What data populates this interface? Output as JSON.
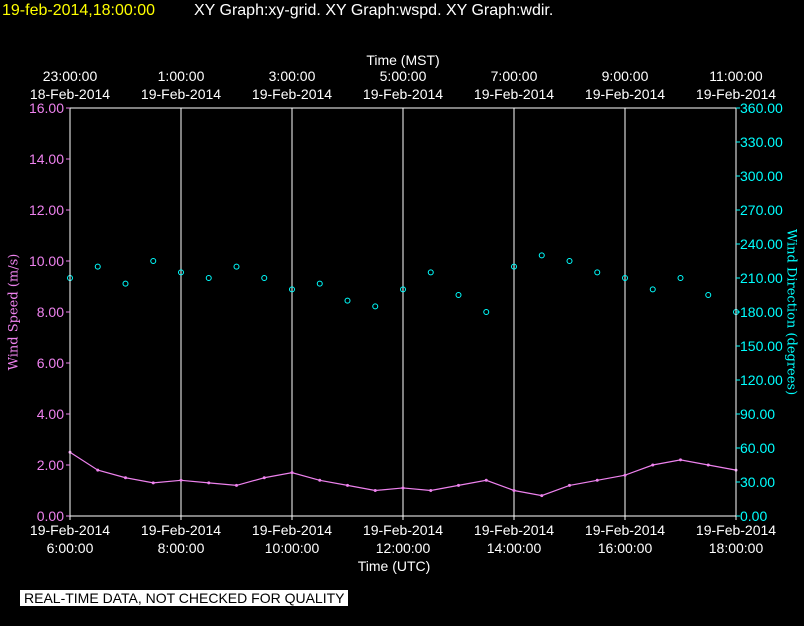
{
  "header": {
    "date": "19-feb-2014,18:00:00",
    "titles": "XY Graph:xy-grid.  XY Graph:wspd.  XY Graph:wdir."
  },
  "banner": "REAL-TIME DATA, NOT CHECKED FOR QUALITY",
  "colors": {
    "speed": "#ee82ee",
    "direction": "#00ffff",
    "grid": "#ffffff",
    "date": "#ffff00"
  },
  "chart_data": {
    "type": "scatter",
    "top_axis": {
      "label": "Time (MST)",
      "ticks": [
        {
          "time": "23:00:00",
          "date": "18-Feb-2014",
          "hour": 0
        },
        {
          "time": "1:00:00",
          "date": "19-Feb-2014",
          "hour": 2
        },
        {
          "time": "3:00:00",
          "date": "19-Feb-2014",
          "hour": 4
        },
        {
          "time": "5:00:00",
          "date": "19-Feb-2014",
          "hour": 6
        },
        {
          "time": "7:00:00",
          "date": "19-Feb-2014",
          "hour": 8
        },
        {
          "time": "9:00:00",
          "date": "19-Feb-2014",
          "hour": 10
        },
        {
          "time": "11:00:00",
          "date": "19-Feb-2014",
          "hour": 12
        }
      ]
    },
    "bottom_axis": {
      "label": "Time (UTC)",
      "range": [
        "19-Feb-2014 6:00:00",
        "19-Feb-2014 18:00:00"
      ],
      "ticks": [
        {
          "date": "19-Feb-2014",
          "time": "6:00:00",
          "hour": 0
        },
        {
          "date": "19-Feb-2014",
          "time": "8:00:00",
          "hour": 2
        },
        {
          "date": "19-Feb-2014",
          "time": "10:00:00",
          "hour": 4
        },
        {
          "date": "19-Feb-2014",
          "time": "12:00:00",
          "hour": 6
        },
        {
          "date": "19-Feb-2014",
          "time": "14:00:00",
          "hour": 8
        },
        {
          "date": "19-Feb-2014",
          "time": "16:00:00",
          "hour": 10
        },
        {
          "date": "19-Feb-2014",
          "time": "18:00:00",
          "hour": 12
        }
      ]
    },
    "left_axis": {
      "label": "Wind Speed (m/s)",
      "range": [
        0,
        16
      ],
      "ticks": [
        "0.00",
        "2.00",
        "4.00",
        "6.00",
        "8.00",
        "10.00",
        "12.00",
        "14.00",
        "16.00"
      ]
    },
    "right_axis": {
      "label": "Wind Direction (degrees)",
      "range": [
        0,
        360
      ],
      "ticks": [
        "0.00",
        "30.00",
        "60.00",
        "90.00",
        "120.00",
        "150.00",
        "180.00",
        "210.00",
        "240.00",
        "270.00",
        "300.00",
        "330.00",
        "360.00"
      ]
    },
    "grid": true,
    "series": [
      {
        "label": "wspd",
        "style": "line",
        "axis": "left",
        "points": [
          [
            0,
            2.5
          ],
          [
            0.5,
            1.8
          ],
          [
            1,
            1.5
          ],
          [
            1.5,
            1.3
          ],
          [
            2,
            1.4
          ],
          [
            2.5,
            1.3
          ],
          [
            3,
            1.2
          ],
          [
            3.5,
            1.5
          ],
          [
            4,
            1.7
          ],
          [
            4.5,
            1.4
          ],
          [
            5,
            1.2
          ],
          [
            5.5,
            1.0
          ],
          [
            6,
            1.1
          ],
          [
            6.5,
            1.0
          ],
          [
            7,
            1.2
          ],
          [
            7.5,
            1.4
          ],
          [
            8,
            1.0
          ],
          [
            8.5,
            0.8
          ],
          [
            9,
            1.2
          ],
          [
            9.5,
            1.4
          ],
          [
            10,
            1.6
          ],
          [
            10.5,
            2.0
          ],
          [
            11,
            2.2
          ],
          [
            11.5,
            2.0
          ],
          [
            12,
            1.8
          ]
        ]
      },
      {
        "label": "wdir",
        "style": "circles",
        "axis": "right",
        "points": [
          [
            0,
            210
          ],
          [
            0.5,
            220
          ],
          [
            1,
            205
          ],
          [
            1.5,
            225
          ],
          [
            2,
            215
          ],
          [
            2.5,
            210
          ],
          [
            3,
            220
          ],
          [
            3.5,
            210
          ],
          [
            4,
            200
          ],
          [
            4.5,
            205
          ],
          [
            5,
            190
          ],
          [
            5.5,
            185
          ],
          [
            6,
            200
          ],
          [
            6.5,
            215
          ],
          [
            7,
            195
          ],
          [
            7.5,
            180
          ],
          [
            8,
            220
          ],
          [
            8.5,
            230
          ],
          [
            9,
            225
          ],
          [
            9.5,
            215
          ],
          [
            10,
            210
          ],
          [
            10.5,
            200
          ],
          [
            11,
            210
          ],
          [
            11.5,
            195
          ],
          [
            12,
            180
          ]
        ]
      }
    ]
  }
}
